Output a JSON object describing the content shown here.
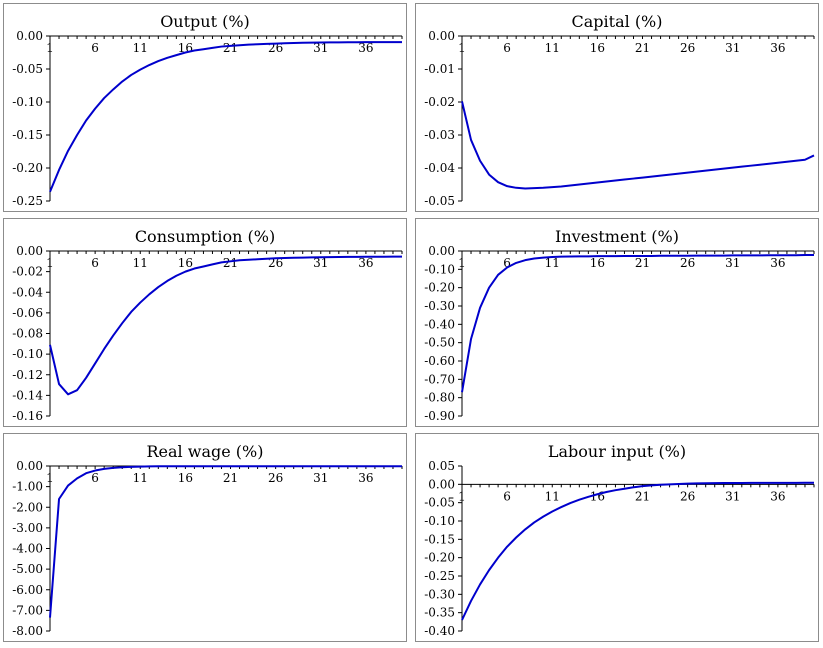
{
  "chart_data": [
    {
      "type": "line",
      "title": "Output (%)",
      "x_ticks": [
        "1",
        "6",
        "11",
        "16",
        "21",
        "26",
        "31",
        "36"
      ],
      "y_ticks": [
        "0.00",
        "-0.05",
        "-0.10",
        "-0.15",
        "-0.20",
        "-0.25"
      ],
      "ylim": [
        -0.25,
        0.0
      ],
      "xlim": [
        1,
        40
      ],
      "series": [
        {
          "color": "#0000cc",
          "x": [
            1,
            2,
            3,
            4,
            5,
            6,
            7,
            8,
            9,
            10,
            11,
            12,
            13,
            14,
            15,
            16,
            17,
            18,
            19,
            20,
            21,
            22,
            23,
            24,
            25,
            26,
            27,
            28,
            29,
            30,
            31,
            32,
            33,
            34,
            35,
            36,
            37,
            38,
            39,
            40
          ],
          "y": [
            -0.236,
            -0.203,
            -0.174,
            -0.15,
            -0.128,
            -0.11,
            -0.094,
            -0.081,
            -0.069,
            -0.059,
            -0.051,
            -0.044,
            -0.038,
            -0.033,
            -0.029,
            -0.025,
            -0.022,
            -0.02,
            -0.018,
            -0.016,
            -0.015,
            -0.014,
            -0.013,
            -0.0125,
            -0.012,
            -0.0115,
            -0.011,
            -0.0106,
            -0.0103,
            -0.0101,
            -0.0099,
            -0.0097,
            -0.0096,
            -0.0095,
            -0.0094,
            -0.0093,
            -0.0093,
            -0.0092,
            -0.0092,
            -0.0092
          ]
        }
      ]
    },
    {
      "type": "line",
      "title": "Capital (%)",
      "x_ticks": [
        "1",
        "6",
        "11",
        "16",
        "21",
        "26",
        "31",
        "36"
      ],
      "y_ticks": [
        "0.00",
        "-0.01",
        "-0.02",
        "-0.03",
        "-0.04",
        "-0.05"
      ],
      "ylim": [
        -0.05,
        0.0
      ],
      "xlim": [
        1,
        40
      ],
      "series": [
        {
          "color": "#0000cc",
          "x": [
            1,
            2,
            3,
            4,
            5,
            6,
            7,
            8,
            9,
            10,
            11,
            12,
            13,
            14,
            15,
            16,
            17,
            18,
            19,
            20,
            21,
            22,
            23,
            24,
            25,
            26,
            27,
            28,
            29,
            30,
            31,
            32,
            33,
            34,
            35,
            36,
            37,
            38,
            39,
            40
          ],
          "y": [
            -0.0198,
            -0.0315,
            -0.0378,
            -0.042,
            -0.0443,
            -0.0455,
            -0.046,
            -0.0462,
            -0.0461,
            -0.046,
            -0.0458,
            -0.0456,
            -0.0453,
            -0.045,
            -0.0447,
            -0.0444,
            -0.0441,
            -0.0438,
            -0.0435,
            -0.0432,
            -0.0429,
            -0.0426,
            -0.0423,
            -0.042,
            -0.0417,
            -0.0414,
            -0.0411,
            -0.0408,
            -0.0405,
            -0.0402,
            -0.0399,
            -0.0396,
            -0.0393,
            -0.039,
            -0.0387,
            -0.0384,
            -0.0381,
            -0.0378,
            -0.0375,
            -0.0362
          ]
        }
      ]
    },
    {
      "type": "line",
      "title": "Consumption (%)",
      "x_ticks": [
        "1",
        "6",
        "11",
        "16",
        "21",
        "26",
        "31",
        "36"
      ],
      "y_ticks": [
        "0.00",
        "-0.02",
        "-0.04",
        "-0.06",
        "-0.08",
        "-0.10",
        "-0.12",
        "-0.14",
        "-0.16"
      ],
      "ylim": [
        -0.16,
        0.0
      ],
      "xlim": [
        1,
        40
      ],
      "series": [
        {
          "color": "#0000cc",
          "x": [
            1,
            2,
            3,
            4,
            5,
            6,
            7,
            8,
            9,
            10,
            11,
            12,
            13,
            14,
            15,
            16,
            17,
            18,
            19,
            20,
            21,
            22,
            23,
            24,
            25,
            26,
            27,
            28,
            29,
            30,
            31,
            32,
            33,
            34,
            35,
            36,
            37,
            38,
            39,
            40
          ],
          "y": [
            -0.091,
            -0.129,
            -0.139,
            -0.135,
            -0.123,
            -0.109,
            -0.095,
            -0.082,
            -0.07,
            -0.059,
            -0.05,
            -0.042,
            -0.035,
            -0.029,
            -0.024,
            -0.02,
            -0.017,
            -0.015,
            -0.013,
            -0.011,
            -0.01,
            -0.009,
            -0.0085,
            -0.008,
            -0.0075,
            -0.007,
            -0.0068,
            -0.0066,
            -0.0064,
            -0.0062,
            -0.006,
            -0.0059,
            -0.0058,
            -0.0057,
            -0.0057,
            -0.0056,
            -0.0056,
            -0.0056,
            -0.0055,
            -0.0055
          ]
        }
      ]
    },
    {
      "type": "line",
      "title": "Investment (%)",
      "x_ticks": [
        "1",
        "6",
        "11",
        "16",
        "21",
        "26",
        "31",
        "36"
      ],
      "y_ticks": [
        "0.00",
        "-0.10",
        "-0.20",
        "-0.30",
        "-0.40",
        "-0.50",
        "-0.60",
        "-0.70",
        "-0.80",
        "-0.90"
      ],
      "ylim": [
        -0.9,
        0.0
      ],
      "xlim": [
        1,
        40
      ],
      "series": [
        {
          "color": "#0000cc",
          "x": [
            1,
            2,
            3,
            4,
            5,
            6,
            7,
            8,
            9,
            10,
            11,
            12,
            13,
            14,
            15,
            16,
            17,
            18,
            19,
            20,
            21,
            22,
            23,
            24,
            25,
            26,
            27,
            28,
            29,
            30,
            31,
            32,
            33,
            34,
            35,
            36,
            37,
            38,
            39,
            40
          ],
          "y": [
            -0.77,
            -0.48,
            -0.31,
            -0.2,
            -0.13,
            -0.09,
            -0.065,
            -0.05,
            -0.041,
            -0.036,
            -0.033,
            -0.031,
            -0.03,
            -0.029,
            -0.029,
            -0.028,
            -0.028,
            -0.028,
            -0.027,
            -0.027,
            -0.027,
            -0.027,
            -0.026,
            -0.026,
            -0.026,
            -0.026,
            -0.025,
            -0.025,
            -0.025,
            -0.025,
            -0.024,
            -0.024,
            -0.024,
            -0.024,
            -0.023,
            -0.023,
            -0.023,
            -0.023,
            -0.022,
            -0.022
          ]
        }
      ]
    },
    {
      "type": "line",
      "title": "Real wage (%)",
      "x_ticks": [
        "1",
        "6",
        "11",
        "16",
        "21",
        "26",
        "31",
        "36"
      ],
      "y_ticks": [
        "0.00",
        "-1.00",
        "-2.00",
        "-3.00",
        "-4.00",
        "-5.00",
        "-6.00",
        "-7.00",
        "-8.00"
      ],
      "ylim": [
        -8.0,
        0.0
      ],
      "xlim": [
        1,
        40
      ],
      "series": [
        {
          "color": "#0000cc",
          "x": [
            1,
            2,
            3,
            4,
            5,
            6,
            7,
            8,
            9,
            10,
            11,
            12,
            13,
            14,
            15,
            16,
            17,
            18,
            19,
            20,
            21,
            22,
            23,
            24,
            25,
            26,
            27,
            28,
            29,
            30,
            31,
            32,
            33,
            34,
            35,
            36,
            37,
            38,
            39,
            40
          ],
          "y": [
            -7.35,
            -1.6,
            -0.95,
            -0.6,
            -0.35,
            -0.22,
            -0.14,
            -0.09,
            -0.06,
            -0.04,
            -0.03,
            -0.02,
            -0.015,
            -0.01,
            -0.01,
            -0.01,
            -0.01,
            -0.01,
            -0.01,
            -0.01,
            -0.01,
            -0.01,
            -0.01,
            -0.01,
            -0.01,
            -0.01,
            -0.01,
            -0.01,
            -0.01,
            -0.01,
            -0.01,
            -0.01,
            -0.01,
            -0.01,
            -0.01,
            -0.01,
            -0.01,
            -0.01,
            -0.01,
            -0.01
          ]
        }
      ]
    },
    {
      "type": "line",
      "title": "Labour input (%)",
      "x_ticks": [
        "1",
        "6",
        "11",
        "16",
        "21",
        "26",
        "31",
        "36"
      ],
      "y_ticks": [
        "0.05",
        "0.00",
        "-0.05",
        "-0.10",
        "-0.15",
        "-0.20",
        "-0.25",
        "-0.30",
        "-0.35",
        "-0.40"
      ],
      "ylim": [
        -0.4,
        0.05
      ],
      "xlim": [
        1,
        40
      ],
      "series": [
        {
          "color": "#0000cc",
          "x": [
            1,
            2,
            3,
            4,
            5,
            6,
            7,
            8,
            9,
            10,
            11,
            12,
            13,
            14,
            15,
            16,
            17,
            18,
            19,
            20,
            21,
            22,
            23,
            24,
            25,
            26,
            27,
            28,
            29,
            30,
            31,
            32,
            33,
            34,
            35,
            36,
            37,
            38,
            39,
            40
          ],
          "y": [
            -0.37,
            -0.318,
            -0.273,
            -0.234,
            -0.2,
            -0.17,
            -0.145,
            -0.123,
            -0.104,
            -0.088,
            -0.074,
            -0.062,
            -0.051,
            -0.042,
            -0.034,
            -0.027,
            -0.021,
            -0.016,
            -0.012,
            -0.008,
            -0.005,
            -0.003,
            -0.001,
            0.0,
            0.001,
            0.002,
            0.0025,
            0.003,
            0.0033,
            0.0035,
            0.0037,
            0.0038,
            0.0039,
            0.004,
            0.004,
            0.0041,
            0.0041,
            0.0041,
            0.0042,
            0.0042
          ]
        }
      ]
    }
  ]
}
